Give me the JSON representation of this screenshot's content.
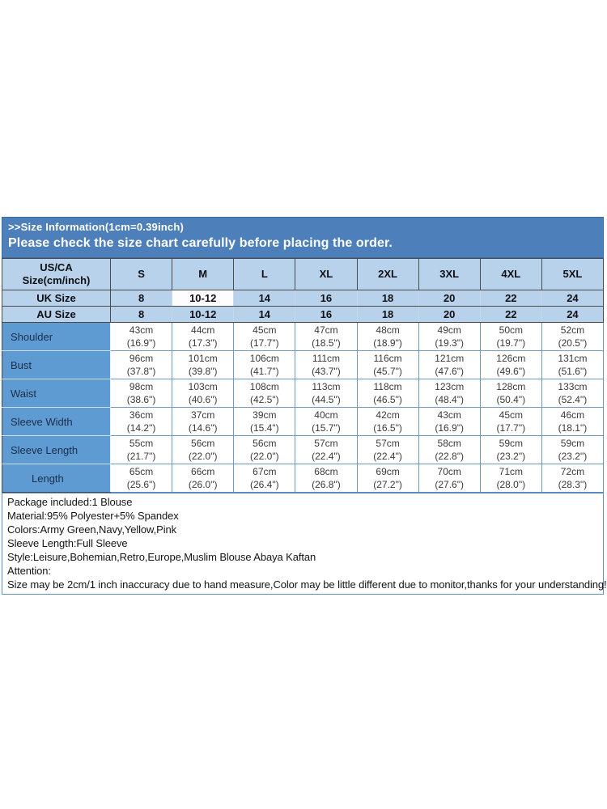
{
  "banner": {
    "line1": ">>Size Information(1cm=0.39inch)",
    "line2": "Please check the size chart carefully before placing the order."
  },
  "size_table": {
    "corner": {
      "line1": "US/CA",
      "line2": "Size(cm/inch)"
    },
    "size_columns": [
      "S",
      "M",
      "L",
      "XL",
      "2XL",
      "3XL",
      "4XL",
      "5XL"
    ],
    "region_rows": [
      {
        "label": "UK Size",
        "values": [
          "8",
          "10-12",
          "14",
          "16",
          "18",
          "20",
          "22",
          "24"
        ]
      },
      {
        "label": "AU Size",
        "values": [
          "8",
          "10-12",
          "14",
          "16",
          "18",
          "20",
          "22",
          "24"
        ]
      }
    ],
    "measurement_rows": [
      {
        "label": "Shoulder",
        "cells": [
          {
            "cm": "43cm",
            "inch": "(16.9\")"
          },
          {
            "cm": "44cm",
            "inch": "(17.3\")"
          },
          {
            "cm": "45cm",
            "inch": "(17.7\")"
          },
          {
            "cm": "47cm",
            "inch": "(18.5\")"
          },
          {
            "cm": "48cm",
            "inch": "(18.9\")"
          },
          {
            "cm": "49cm",
            "inch": "(19.3\")"
          },
          {
            "cm": "50cm",
            "inch": "(19.7\")"
          },
          {
            "cm": "52cm",
            "inch": "(20.5\")"
          }
        ]
      },
      {
        "label": "Bust",
        "cells": [
          {
            "cm": "96cm",
            "inch": "(37.8\")"
          },
          {
            "cm": "101cm",
            "inch": "(39.8\")"
          },
          {
            "cm": "106cm",
            "inch": "(41.7\")"
          },
          {
            "cm": "111cm",
            "inch": "(43.7\")"
          },
          {
            "cm": "116cm",
            "inch": "(45.7\")"
          },
          {
            "cm": "121cm",
            "inch": "(47.6\")"
          },
          {
            "cm": "126cm",
            "inch": "(49.6\")"
          },
          {
            "cm": "131cm",
            "inch": "(51.6\")"
          }
        ]
      },
      {
        "label": "Waist",
        "cells": [
          {
            "cm": "98cm",
            "inch": "(38.6\")"
          },
          {
            "cm": "103cm",
            "inch": "(40.6\")"
          },
          {
            "cm": "108cm",
            "inch": "(42.5\")"
          },
          {
            "cm": "113cm",
            "inch": "(44.5\")"
          },
          {
            "cm": "118cm",
            "inch": "(46.5\")"
          },
          {
            "cm": "123cm",
            "inch": "(48.4\")"
          },
          {
            "cm": "128cm",
            "inch": "(50.4\")"
          },
          {
            "cm": "133cm",
            "inch": "(52.4\")"
          }
        ]
      },
      {
        "label": "Sleeve Width",
        "cells": [
          {
            "cm": "36cm",
            "inch": "(14.2\")"
          },
          {
            "cm": "37cm",
            "inch": "(14.6\")"
          },
          {
            "cm": "39cm",
            "inch": "(15.4\")"
          },
          {
            "cm": "40cm",
            "inch": "(15.7\")"
          },
          {
            "cm": "42cm",
            "inch": "(16.5\")"
          },
          {
            "cm": "43cm",
            "inch": "(16.9\")"
          },
          {
            "cm": "45cm",
            "inch": "(17.7\")"
          },
          {
            "cm": "46cm",
            "inch": "(18.1\")"
          }
        ]
      },
      {
        "label": "Sleeve Length",
        "cells": [
          {
            "cm": "55cm",
            "inch": "(21.7\")"
          },
          {
            "cm": "56cm",
            "inch": "(22.0\")"
          },
          {
            "cm": "56cm",
            "inch": "(22.0\")"
          },
          {
            "cm": "57cm",
            "inch": "(22.4\")"
          },
          {
            "cm": "57cm",
            "inch": "(22.4\")"
          },
          {
            "cm": "58cm",
            "inch": "(22.8\")"
          },
          {
            "cm": "59cm",
            "inch": "(23.2\")"
          },
          {
            "cm": "59cm",
            "inch": "(23.2\")"
          }
        ]
      },
      {
        "label": "Length",
        "cells": [
          {
            "cm": "65cm",
            "inch": "(25.6\")"
          },
          {
            "cm": "66cm",
            "inch": "(26.0\")"
          },
          {
            "cm": "67cm",
            "inch": "(26.4\")"
          },
          {
            "cm": "68cm",
            "inch": "(26.8\")"
          },
          {
            "cm": "69cm",
            "inch": "(27.2\")"
          },
          {
            "cm": "70cm",
            "inch": "(27.6\")"
          },
          {
            "cm": "71cm",
            "inch": "(28.0\")"
          },
          {
            "cm": "72cm",
            "inch": "(28.3\")"
          }
        ]
      }
    ]
  },
  "details": {
    "lines": [
      "Package included:1 Blouse",
      "Material:95% Polyester+5% Spandex",
      "Colors:Army Green,Navy,Yellow,Pink",
      "Sleeve Length:Full Sleeve",
      "Style:Leisure,Bohemian,Retro,Europe,Muslim Blouse Abaya Kaftan",
      "Attention:",
      "Size may be 2cm/1 inch inaccuracy due to hand measure,Color may be little different due to monitor,thanks for your understanding!"
    ]
  },
  "colors": {
    "banner_bg": "#4d80ba",
    "header_bg": "#b7d2ea",
    "label_column_bg": "#5f9bd3",
    "data_border": "#6f9ac6",
    "dark_border": "#4a4a4a",
    "details_border": "#5c8fc6",
    "banner_text": "#ffffff"
  }
}
